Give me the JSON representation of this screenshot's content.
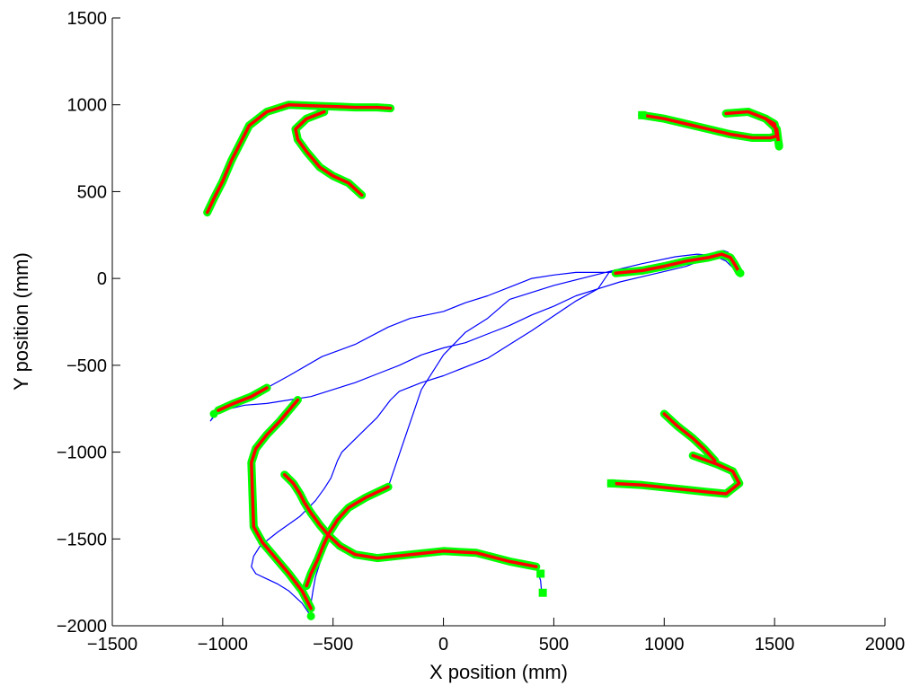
{
  "chart_data": {
    "type": "line",
    "title": "",
    "xlabel": "X position (mm)",
    "ylabel": "Y position (mm)",
    "xlim": [
      -1500,
      2000
    ],
    "ylim": [
      -2000,
      1500
    ],
    "xticks": [
      -1500,
      -1000,
      -500,
      0,
      500,
      1000,
      1500,
      2000
    ],
    "yticks": [
      -2000,
      -1500,
      -1000,
      -500,
      0,
      500,
      1000,
      1500
    ],
    "xtick_labels": [
      "−1500",
      "−1000",
      "−500",
      "0",
      "500",
      "1000",
      "1500",
      "2000"
    ],
    "ytick_labels": [
      "−2000",
      "−1500",
      "−1000",
      "−500",
      "0",
      "500",
      "1000",
      "1500"
    ],
    "grid": false,
    "colors": {
      "path": "#0000ff",
      "highlight": "#ff0000",
      "glow": "#00ff00",
      "axis": "#000000"
    },
    "series": [
      {
        "role": "full-path",
        "x": [
          445,
          440,
          425,
          400,
          200,
          0,
          -150,
          -300,
          -350,
          -420,
          -480,
          -510,
          -530,
          -545,
          -560,
          -580,
          -590,
          -595,
          -600,
          -600
        ],
        "y": [
          -1810,
          -1740,
          -1680,
          -1660,
          -1590,
          -1570,
          -1590,
          -1610,
          -1600,
          -1570,
          -1520,
          -1480,
          -1510,
          -1560,
          -1640,
          -1720,
          -1790,
          -1830,
          -1870,
          -1945
        ]
      },
      {
        "role": "full-path",
        "x": [
          -600,
          -640,
          -700,
          -750,
          -800,
          -850,
          -870,
          -860,
          -830,
          -750,
          -650,
          -580,
          -540,
          -510,
          -480,
          -460,
          -380,
          -300,
          -240,
          -200,
          -100,
          0,
          200,
          400,
          600,
          700,
          750
        ],
        "y": [
          -1945,
          -1870,
          -1800,
          -1760,
          -1730,
          -1700,
          -1660,
          -1600,
          -1540,
          -1460,
          -1370,
          -1280,
          -1210,
          -1150,
          -1050,
          -1000,
          -900,
          -800,
          -700,
          -650,
          -600,
          -560,
          -460,
          -300,
          -130,
          -60,
          35
        ]
      },
      {
        "role": "full-path",
        "x": [
          750,
          900,
          1050,
          1150,
          1250,
          1290,
          1270,
          1240,
          1180,
          1100,
          1000,
          900,
          800,
          700,
          600,
          500,
          400,
          300,
          200,
          100,
          0,
          -100,
          -200,
          -300,
          -400,
          -500,
          -600,
          -700,
          -800,
          -900,
          -1000,
          -1030,
          -1055,
          -1040,
          -1000,
          -950,
          -800
        ],
        "y": [
          35,
          55,
          80,
          110,
          140,
          150,
          160,
          155,
          110,
          70,
          40,
          10,
          -20,
          -60,
          -100,
          -160,
          -210,
          -270,
          -320,
          -370,
          -400,
          -440,
          -500,
          -550,
          -600,
          -640,
          -680,
          -700,
          -720,
          -730,
          -760,
          -780,
          -820,
          -790,
          -760,
          -730,
          -630
        ]
      },
      {
        "role": "full-path",
        "x": [
          -800,
          -700,
          -550,
          -400,
          -250,
          -150,
          0,
          100,
          200,
          300,
          400,
          500,
          600,
          700,
          750,
          850,
          1000,
          1150,
          1250,
          1310,
          1340,
          1320,
          1280,
          1230,
          1150,
          1050,
          900,
          750,
          500,
          300,
          200,
          100,
          0,
          -100,
          -250
        ],
        "y": [
          -630,
          -560,
          -450,
          -380,
          -280,
          -230,
          -190,
          -140,
          -100,
          -50,
          0,
          20,
          35,
          35,
          35,
          50,
          90,
          130,
          150,
          110,
          30,
          50,
          100,
          130,
          140,
          125,
          85,
          40,
          -40,
          -120,
          -230,
          -310,
          -440,
          -640,
          -1200
        ]
      }
    ],
    "note_series": [],
    "highlighted_segments": [
      {
        "x": [
          420,
          300,
          150,
          0,
          -150,
          -300,
          -400,
          -470
        ],
        "y": [
          -1660,
          -1630,
          -1580,
          -1570,
          -1590,
          -1610,
          -1590,
          -1540
        ]
      },
      {
        "x": [
          -470,
          -520,
          -560,
          -600,
          -630,
          -650,
          -680,
          -720
        ],
        "y": [
          -1540,
          -1480,
          -1420,
          -1350,
          -1290,
          -1240,
          -1180,
          -1130
        ]
      },
      {
        "x": [
          -620,
          -600,
          -570,
          -545,
          -520,
          -480,
          -430,
          -350,
          -250
        ],
        "y": [
          -1770,
          -1700,
          -1620,
          -1540,
          -1470,
          -1390,
          -1320,
          -1260,
          -1200
        ]
      },
      {
        "x": [
          -600,
          -640,
          -700,
          -760,
          -820,
          -860,
          -870,
          -850,
          -800,
          -740,
          -660
        ],
        "y": [
          -1900,
          -1800,
          -1700,
          -1610,
          -1520,
          -1430,
          -1060,
          -980,
          -900,
          -820,
          -700
        ]
      },
      {
        "x": [
          -1020,
          -950,
          -870,
          -800
        ],
        "y": [
          -760,
          -720,
          -680,
          -630
        ]
      },
      {
        "x": [
          760,
          900,
          1050,
          1200,
          1280,
          1340,
          1310,
          1240,
          1130
        ],
        "y": [
          -1180,
          -1190,
          -1210,
          -1230,
          -1240,
          -1180,
          -1110,
          -1070,
          -1020
        ]
      },
      {
        "x": [
          1000,
          1060,
          1130,
          1180,
          1230
        ],
        "y": [
          -780,
          -850,
          -920,
          -980,
          -1050
        ]
      },
      {
        "x": [
          780,
          900,
          1000,
          1100,
          1200,
          1260,
          1300,
          1320,
          1340
        ],
        "y": [
          30,
          45,
          70,
          100,
          120,
          140,
          120,
          80,
          35
        ]
      },
      {
        "x": [
          900,
          1000,
          1100,
          1200,
          1300,
          1400,
          1480,
          1510,
          1500,
          1460
        ],
        "y": [
          940,
          920,
          890,
          860,
          830,
          810,
          810,
          820,
          890,
          920
        ]
      },
      {
        "x": [
          1280,
          1380,
          1460,
          1510,
          1520
        ],
        "y": [
          950,
          960,
          920,
          860,
          760
        ]
      },
      {
        "x": [
          -880,
          -800,
          -700,
          -600,
          -500,
          -400,
          -300,
          -240
        ],
        "y": [
          880,
          960,
          1000,
          995,
          990,
          985,
          985,
          980
        ]
      },
      {
        "x": [
          -1070,
          -1040,
          -1000,
          -960,
          -920,
          -880
        ],
        "y": [
          380,
          460,
          560,
          680,
          780,
          880
        ]
      },
      {
        "x": [
          -540,
          -620,
          -670,
          -660,
          -620,
          -560,
          -500,
          -430,
          -370
        ],
        "y": [
          960,
          920,
          860,
          800,
          730,
          640,
          590,
          550,
          480
        ]
      }
    ],
    "markers": [
      {
        "shape": "circle",
        "x": -600,
        "y": -1945
      },
      {
        "shape": "square",
        "x": 450,
        "y": -1810
      },
      {
        "shape": "square",
        "x": 440,
        "y": -1700
      },
      {
        "shape": "square",
        "x": 760,
        "y": -1180
      },
      {
        "shape": "square",
        "x": 900,
        "y": 940
      },
      {
        "shape": "circle",
        "x": 1520,
        "y": 770
      },
      {
        "shape": "circle",
        "x": 1345,
        "y": 30
      },
      {
        "shape": "circle",
        "x": -1040,
        "y": -780
      }
    ]
  }
}
